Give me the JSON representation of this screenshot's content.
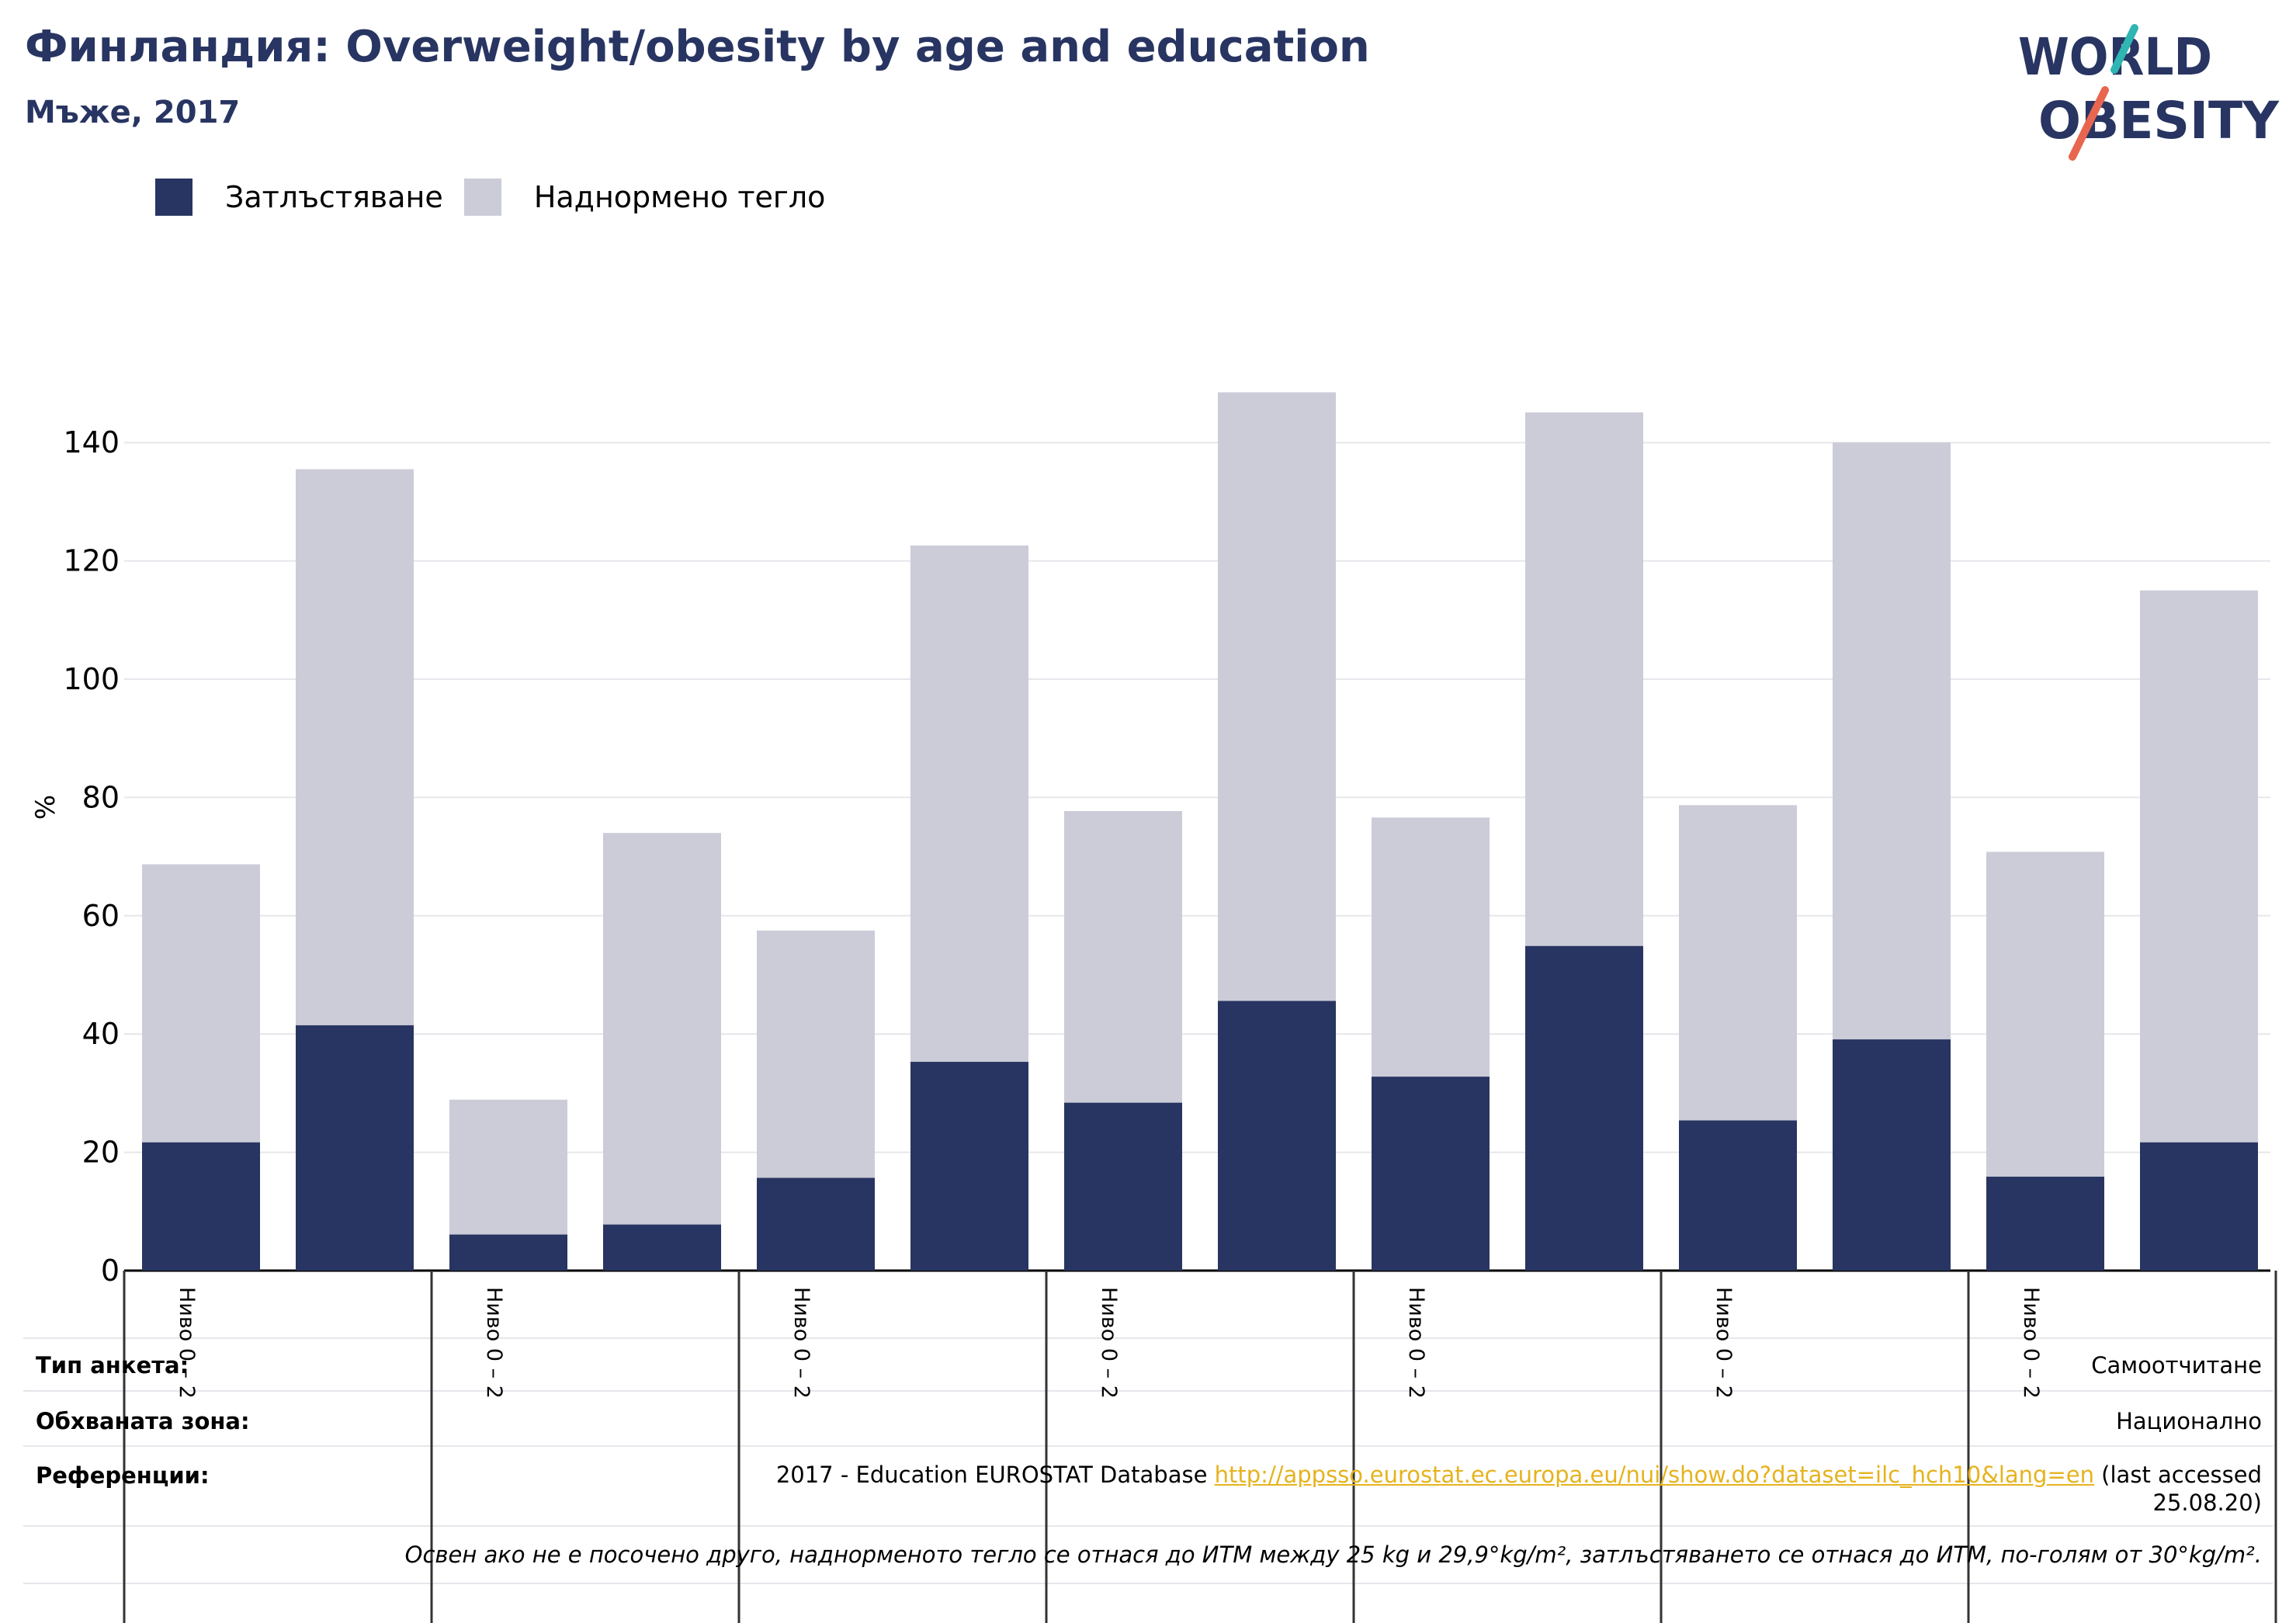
{
  "title": "Финландия: Overweight/obesity by age and education",
  "subtitle": "Мъже, 2017",
  "logo": {
    "line1": "WORLD",
    "line2": "OBESITY"
  },
  "legend": [
    {
      "label": "Затлъстяване",
      "color": "#283562"
    },
    {
      "label": "Наднормено тегло",
      "color": "#cbccd8"
    }
  ],
  "chart_data": {
    "type": "bar",
    "stacked": true,
    "ylabel": "%",
    "ylim": [
      0,
      150
    ],
    "yticks": [
      0,
      20,
      40,
      60,
      80,
      100,
      120,
      140
    ],
    "grid": true,
    "categories": [
      "",
      "",
      "",
      "",
      "",
      "",
      "",
      "",
      "",
      "",
      "",
      "",
      "",
      ""
    ],
    "group_labels": [
      "Ниво 0 – 2",
      "Ниво 0 – 2",
      "Ниво 0 – 2",
      "Ниво 0 – 2",
      "Ниво 0 – 2",
      "Ниво 0 – 2",
      "Ниво 0 – 2"
    ],
    "series": [
      {
        "name": "Затлъстяване",
        "color": "#283562",
        "values": [
          21.7,
          41.5,
          6.1,
          7.8,
          15.7,
          35.3,
          28.4,
          45.6,
          32.8,
          54.9,
          25.4,
          39.1,
          15.9,
          21.7
        ]
      },
      {
        "name": "Наднормено тегло",
        "color": "#cbccd8",
        "values": [
          47.0,
          94.0,
          22.8,
          66.2,
          41.8,
          87.3,
          49.3,
          102.9,
          43.8,
          90.2,
          53.3,
          100.9,
          54.9,
          93.3
        ]
      }
    ],
    "legend_position": "top-left"
  },
  "info": {
    "survey_type_label": "Тип анкета:",
    "survey_type_value": "Самоотчитане",
    "area_label": "Обхваната зона:",
    "area_value": "Национално",
    "references_label": "Референции:",
    "references_prefix": "2017 - Education EUROSTAT Database ",
    "references_link": "http://appsso.eurostat.ec.europa.eu/nui/show.do?dataset=ilc_hch10&lang=en",
    "references_suffix": " (last accessed",
    "references_date": "25.08.20)",
    "note": "Освен ако не е посочено друго, наднорменото тегло се отнася до ИТМ между 25 kg и 29,9°kg/m², затлъстяването се отнася до ИТМ, по-голям от 30°kg/m²."
  }
}
